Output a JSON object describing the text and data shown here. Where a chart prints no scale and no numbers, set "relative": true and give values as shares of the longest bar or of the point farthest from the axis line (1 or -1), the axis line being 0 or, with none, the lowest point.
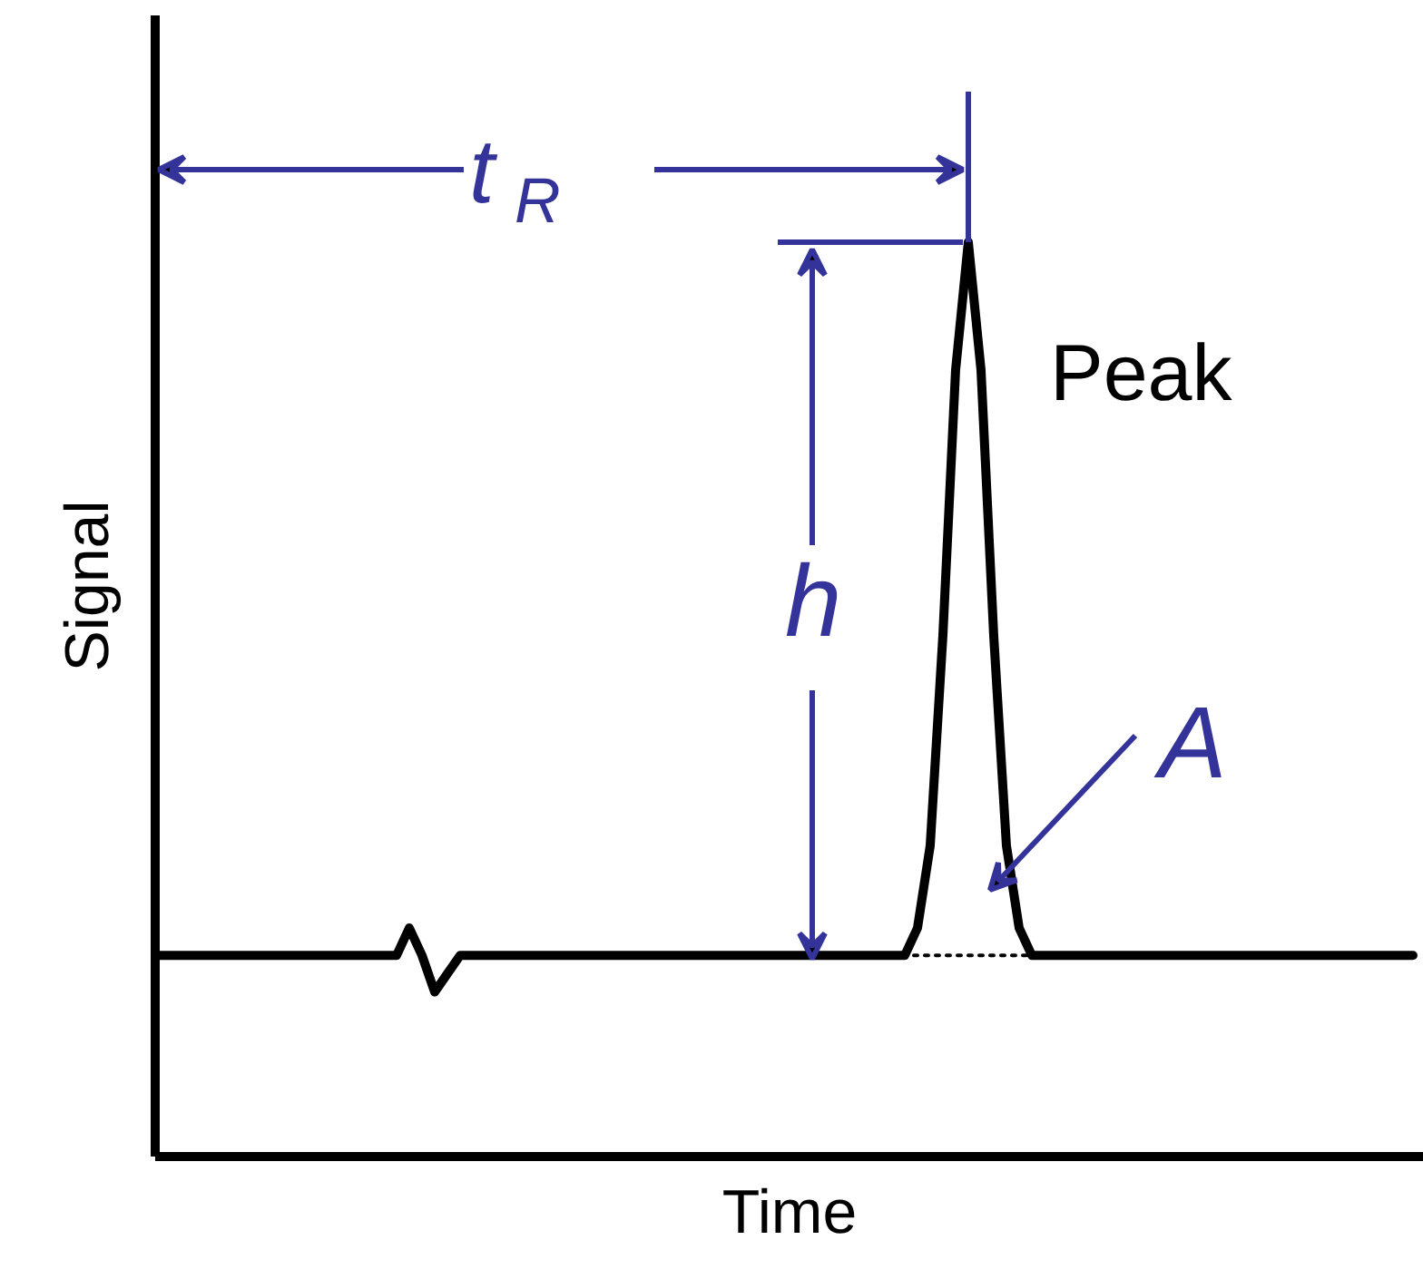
{
  "chart_data": {
    "type": "line",
    "relative": true,
    "xlabel": "Time",
    "ylabel": "Signal",
    "line_style": "solid",
    "marker": "none",
    "ref_lines": [
      {
        "axis": "y",
        "value": 1.0,
        "color": "#333399"
      }
    ],
    "categories": [
      null,
      null,
      null,
      null,
      null,
      null,
      null,
      null,
      null,
      null,
      null,
      null,
      null,
      null,
      null,
      null,
      null,
      null,
      null,
      null,
      null,
      null,
      null,
      null,
      null,
      null,
      null,
      null,
      null,
      null,
      null,
      null,
      null,
      null,
      null,
      null,
      null,
      null,
      null,
      null,
      null,
      null,
      null,
      null,
      null,
      null,
      null,
      null,
      null,
      null,
      null,
      null,
      null,
      null,
      null,
      null,
      null,
      null,
      null,
      null,
      null,
      null,
      null,
      null,
      null,
      null,
      null,
      null,
      null,
      null,
      null,
      null,
      null,
      null,
      null,
      null,
      null,
      null,
      null,
      null,
      null,
      null,
      null,
      null,
      null,
      null,
      null,
      null,
      null,
      null,
      null,
      null,
      null,
      null,
      null,
      null,
      null,
      null,
      null,
      null
    ],
    "series": [
      {
        "color": "#000000",
        "values": [
          0.22,
          0.22,
          0.22,
          0.22,
          0.22,
          0.22,
          0.22,
          0.22,
          0.22,
          0.22,
          0.22,
          0.22,
          0.22,
          0.22,
          0.22,
          0.22,
          0.22,
          0.22,
          0.22,
          0.22,
          0.25,
          0.22,
          0.18,
          0.2,
          0.22,
          0.22,
          0.22,
          0.22,
          0.22,
          0.22,
          0.22,
          0.22,
          0.22,
          0.22,
          0.22,
          0.22,
          0.22,
          0.22,
          0.22,
          0.22,
          0.22,
          0.22,
          0.22,
          0.22,
          0.22,
          0.22,
          0.22,
          0.22,
          0.22,
          0.22,
          0.22,
          0.22,
          0.22,
          0.22,
          0.22,
          0.22,
          0.22,
          0.22,
          0.22,
          0.22,
          0.25,
          0.34,
          0.57,
          0.86,
          1.0,
          0.86,
          0.57,
          0.34,
          0.25,
          0.22,
          0.22,
          0.22,
          0.22,
          0.22,
          0.22,
          0.22,
          0.22,
          0.22,
          0.22,
          0.22,
          0.22,
          0.22,
          0.22,
          0.22,
          0.22,
          0.22,
          0.22,
          0.22,
          0.22,
          0.22,
          0.22,
          0.22,
          0.22,
          0.22,
          0.22,
          0.22,
          0.22,
          0.22,
          0.22,
          0.22
        ]
      },
      {
        "color": "#000000",
        "line_style": "dotted",
        "values": [
          null,
          null,
          null,
          null,
          null,
          null,
          null,
          null,
          null,
          null,
          null,
          null,
          null,
          null,
          null,
          null,
          null,
          null,
          null,
          null,
          null,
          null,
          null,
          null,
          null,
          null,
          null,
          null,
          null,
          null,
          null,
          null,
          null,
          null,
          null,
          null,
          null,
          null,
          null,
          null,
          null,
          null,
          null,
          null,
          null,
          null,
          null,
          null,
          null,
          null,
          null,
          null,
          null,
          null,
          null,
          null,
          null,
          null,
          0.22,
          0.22,
          0.22,
          0.22,
          0.22,
          0.22,
          0.22,
          0.22,
          0.22,
          0.22,
          0.22,
          0.22,
          null,
          null,
          null,
          null,
          null,
          null,
          null,
          null,
          null,
          null,
          null,
          null,
          null,
          null,
          null,
          null,
          null,
          null,
          null,
          null,
          null,
          null,
          null,
          null,
          null,
          null,
          null,
          null,
          null,
          null
        ]
      }
    ],
    "annotations": [
      "t$_{R}$",
      "Peak",
      "h",
      "A"
    ]
  }
}
